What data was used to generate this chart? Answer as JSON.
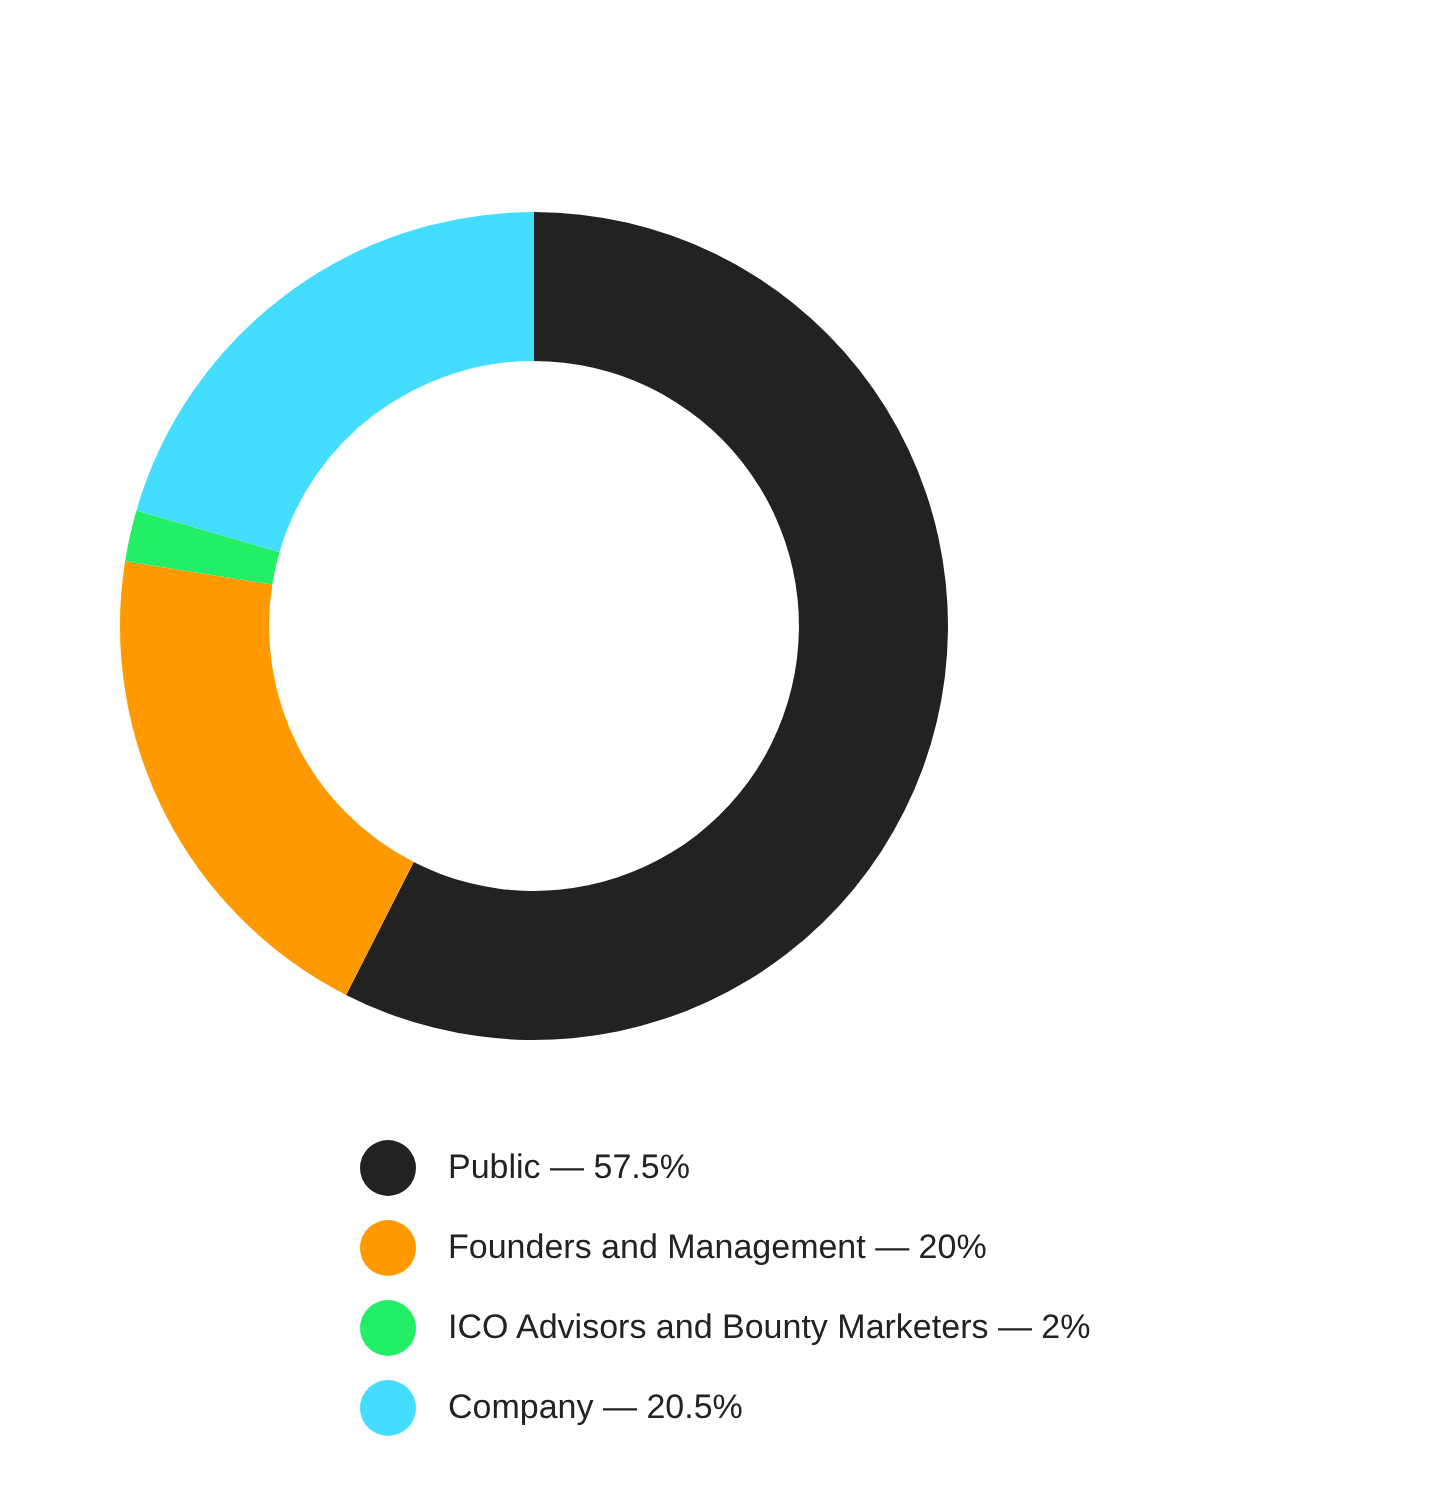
{
  "chart_data": {
    "type": "donut",
    "categories": [
      "Public — 57.5%",
      "Founders and Management — 20%",
      "ICO Advisors and Bounty Marketers — 2%",
      "Company — 20.5%"
    ],
    "values": [
      57.5,
      20,
      2,
      20.5
    ],
    "colors": [
      "#222222",
      "#ff9900",
      "#22ee66",
      "#44ddff"
    ],
    "legend": "bottom"
  }
}
